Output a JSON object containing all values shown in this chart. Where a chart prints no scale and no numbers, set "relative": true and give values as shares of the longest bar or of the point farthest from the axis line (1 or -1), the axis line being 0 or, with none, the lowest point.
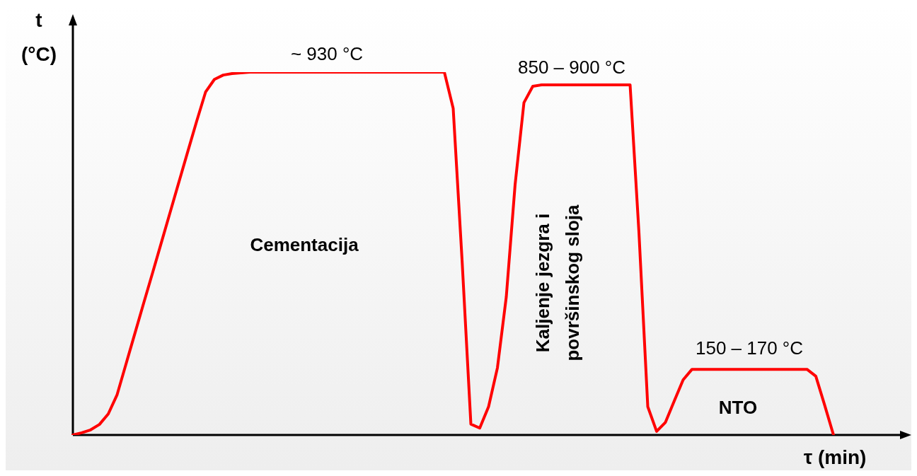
{
  "chart_data": {
    "type": "line",
    "relative": true,
    "marker": "none",
    "xlabel": "τ (min)",
    "ylabel": "t (°C)",
    "annotations": [
      "~ 930 °C",
      "850 – 900 °C",
      "Cementacija",
      "Kaljenje jezgra i površinskog sloja",
      "150 – 170 °C",
      "NTO"
    ],
    "categories": [
      null,
      null,
      null,
      null,
      null,
      null,
      null,
      null,
      null,
      null,
      null,
      null,
      null,
      null,
      null,
      null,
      null,
      null,
      null,
      null,
      null,
      null,
      null,
      null,
      null,
      null,
      null,
      null,
      null,
      null,
      null,
      null,
      null,
      null,
      null,
      null,
      null,
      null,
      null,
      null,
      null,
      null,
      null,
      null,
      null,
      null,
      null,
      null,
      null,
      null,
      null,
      null,
      null,
      null,
      null,
      null,
      null,
      null,
      null,
      null,
      null,
      null,
      null,
      null,
      null,
      null,
      null,
      null,
      null,
      null,
      null,
      null,
      null,
      null,
      null,
      null,
      null,
      null,
      null,
      null,
      null,
      null,
      null,
      null,
      null,
      null,
      null
    ],
    "series": [
      {
        "color": "#ff0000",
        "values": [
          0,
          0.006,
          0.014,
          0.029,
          0.058,
          0.111,
          0.195,
          0.279,
          0.363,
          0.446,
          0.53,
          0.614,
          0.698,
          0.782,
          0.865,
          0.945,
          0.98,
          0.992,
          0.996,
          0.998,
          1,
          1,
          1,
          1,
          1,
          1,
          1,
          1,
          1,
          1,
          1,
          1,
          1,
          1,
          1,
          1,
          1,
          1,
          1,
          1,
          1,
          1,
          1,
          0.9,
          0.483,
          0.03,
          0.019,
          0.078,
          0.185,
          0.38,
          0.69,
          0.916,
          0.961,
          0.965,
          0.965,
          0.965,
          0.965,
          0.965,
          0.965,
          0.965,
          0.965,
          0.965,
          0.965,
          0.965,
          0.559,
          0.078,
          0.01,
          0.035,
          0.094,
          0.152,
          0.181,
          0.181,
          0.181,
          0.181,
          0.181,
          0.181,
          0.181,
          0.181,
          0.181,
          0.181,
          0.181,
          0.181,
          0.181,
          0.181,
          0.162,
          0.082,
          0
        ]
      }
    ]
  }
}
